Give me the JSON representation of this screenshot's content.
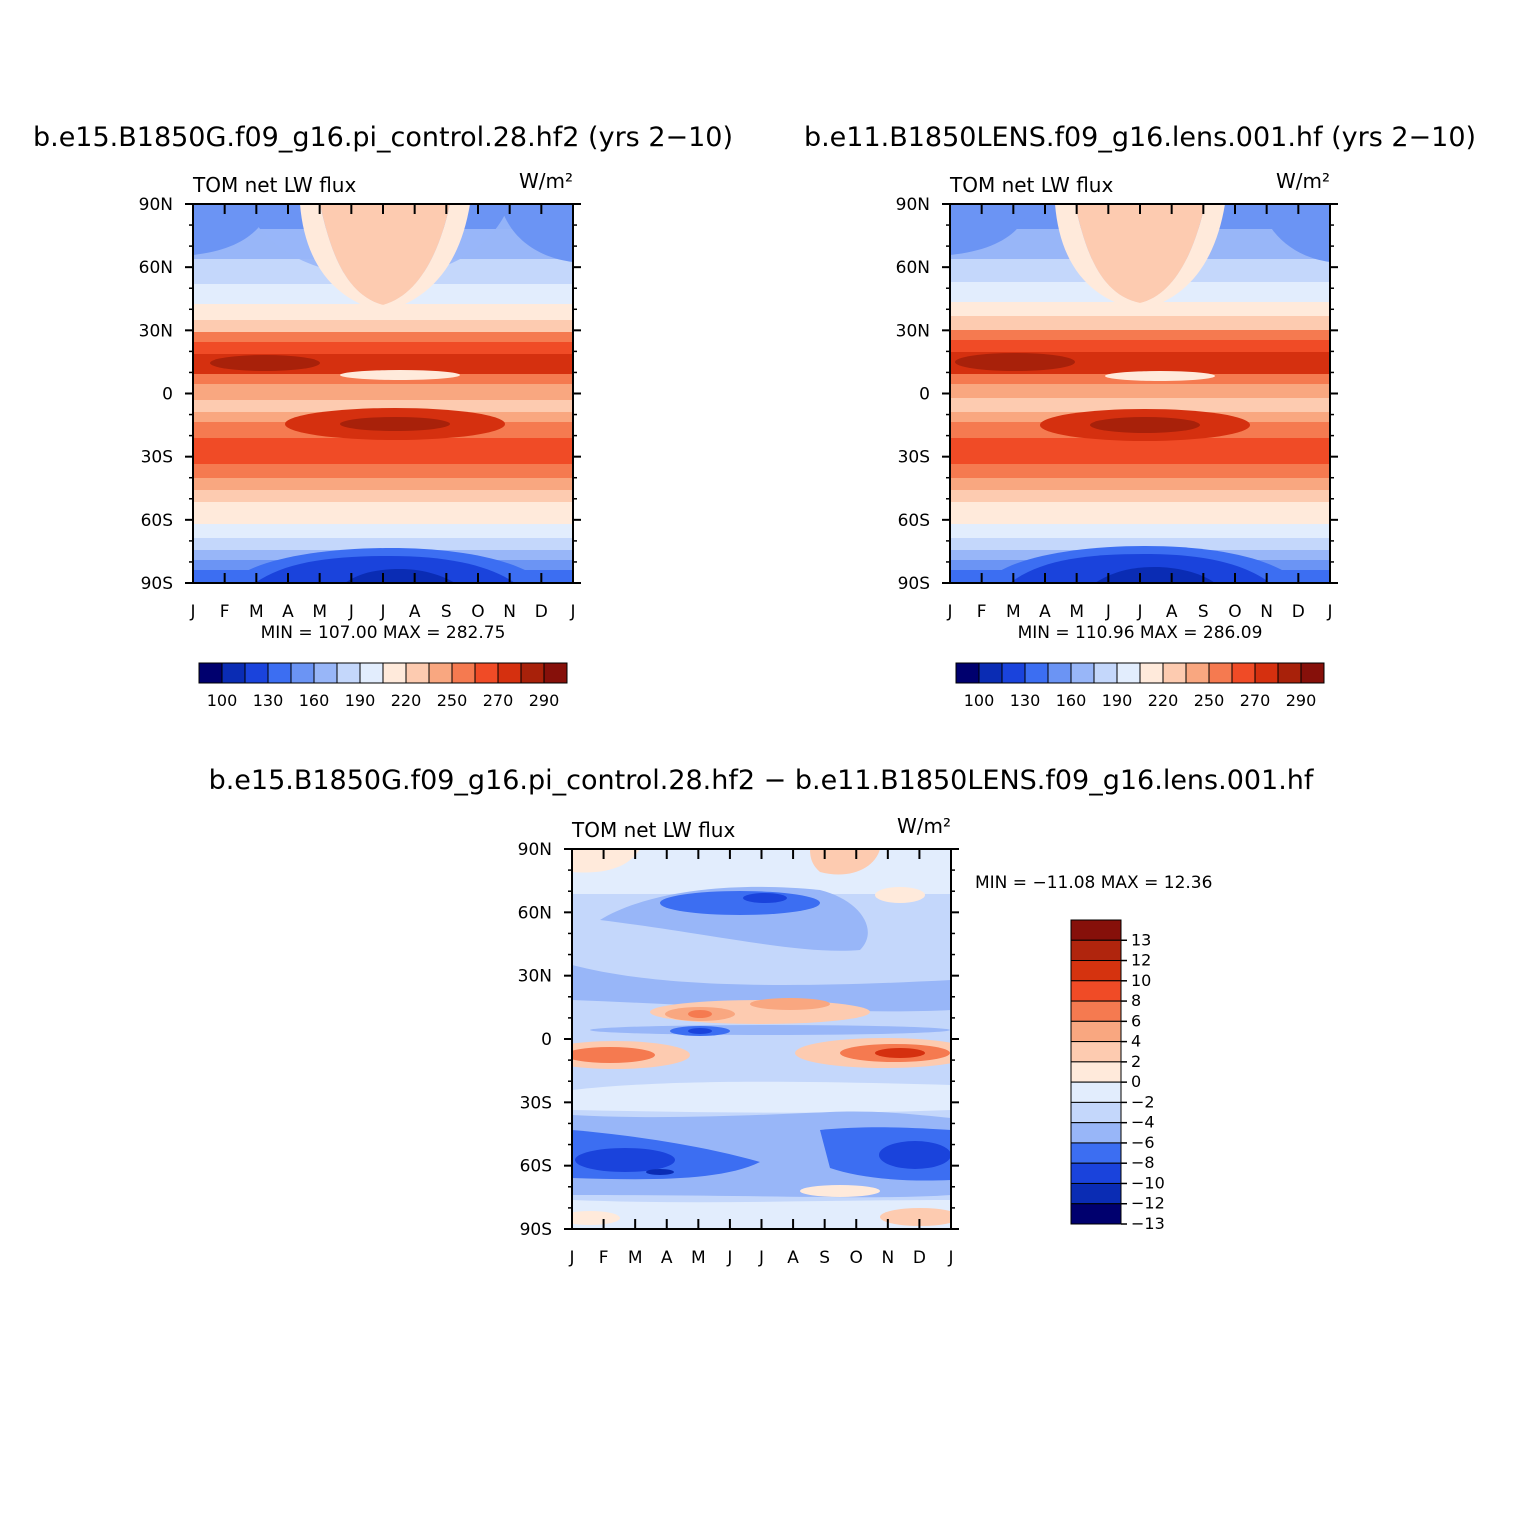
{
  "chart_data": [
    {
      "type": "heatmap",
      "title": "b.e15.B1850G.f09_g16.pi_control.28.hf2 (yrs 2−10)",
      "left_label": "TOM net LW flux",
      "units": "W/m²",
      "x_tick_labels": [
        "J",
        "F",
        "M",
        "A",
        "M",
        "J",
        "J",
        "A",
        "S",
        "O",
        "N",
        "D",
        "J"
      ],
      "y_tick_labels": [
        "90N",
        "60N",
        "30N",
        "0",
        "30S",
        "60S",
        "90S"
      ],
      "ylim": [
        -90,
        90
      ],
      "stats": "MIN =  107.00  MAX =  282.75",
      "colorbar": {
        "orientation": "horizontal",
        "colors": [
          "#00006e",
          "#0a2cb4",
          "#1a43dc",
          "#3c6ef2",
          "#6b94f4",
          "#98b6f8",
          "#c4d7fb",
          "#e2edfd",
          "#ffeadb",
          "#fdcbb0",
          "#f9a780",
          "#f57a50",
          "#f04b26",
          "#d5300f",
          "#a8210a",
          "#86100a"
        ],
        "tick_labels": [
          "100",
          "130",
          "160",
          "190",
          "220",
          "250",
          "270",
          "290"
        ]
      }
    },
    {
      "type": "heatmap",
      "title": "b.e11.B1850LENS.f09_g16.lens.001.hf (yrs 2−10)",
      "left_label": "TOM net LW flux",
      "units": "W/m²",
      "x_tick_labels": [
        "J",
        "F",
        "M",
        "A",
        "M",
        "J",
        "J",
        "A",
        "S",
        "O",
        "N",
        "D",
        "J"
      ],
      "y_tick_labels": [
        "90N",
        "60N",
        "30N",
        "0",
        "30S",
        "60S",
        "90S"
      ],
      "ylim": [
        -90,
        90
      ],
      "stats": "MIN =  110.96  MAX =  286.09",
      "colorbar": {
        "orientation": "horizontal",
        "colors": [
          "#00006e",
          "#0a2cb4",
          "#1a43dc",
          "#3c6ef2",
          "#6b94f4",
          "#98b6f8",
          "#c4d7fb",
          "#e2edfd",
          "#ffeadb",
          "#fdcbb0",
          "#f9a780",
          "#f57a50",
          "#f04b26",
          "#d5300f",
          "#a8210a",
          "#86100a"
        ],
        "tick_labels": [
          "100",
          "130",
          "160",
          "190",
          "220",
          "250",
          "270",
          "290"
        ]
      }
    },
    {
      "type": "heatmap",
      "title": "b.e15.B1850G.f09_g16.pi_control.28.hf2 − b.e11.B1850LENS.f09_g16.lens.001.hf",
      "left_label": "TOM net LW flux",
      "units": "W/m²",
      "x_tick_labels": [
        "J",
        "F",
        "M",
        "A",
        "M",
        "J",
        "J",
        "A",
        "S",
        "O",
        "N",
        "D",
        "J"
      ],
      "y_tick_labels": [
        "90N",
        "60N",
        "30N",
        "0",
        "30S",
        "60S",
        "90S"
      ],
      "ylim": [
        -90,
        90
      ],
      "stats": "MIN = −11.08  MAX =   12.36",
      "colorbar": {
        "orientation": "vertical",
        "colors": [
          "#86100a",
          "#b0250d",
          "#d5330f",
          "#f04b26",
          "#f57a50",
          "#f9a780",
          "#fdcbb0",
          "#ffeadb",
          "#e2edfd",
          "#c4d7fb",
          "#98b6f8",
          "#3c6ef2",
          "#1a43dc",
          "#0a2cb4",
          "#00006e"
        ],
        "tick_labels": [
          "13",
          "12",
          "10",
          "8",
          "6",
          "4",
          "2",
          "0",
          "−2",
          "−4",
          "−6",
          "−8",
          "−10",
          "−12",
          "−13"
        ]
      }
    }
  ],
  "colors": {
    "blues": [
      "#00006e",
      "#0a2cb4",
      "#1a43dc",
      "#3c6ef2",
      "#6b94f4",
      "#98b6f8",
      "#c4d7fb",
      "#e2edfd"
    ],
    "reds": [
      "#ffeadb",
      "#fdcbb0",
      "#f9a780",
      "#f57a50",
      "#f04b26",
      "#d5300f",
      "#a8210a",
      "#86100a"
    ]
  }
}
